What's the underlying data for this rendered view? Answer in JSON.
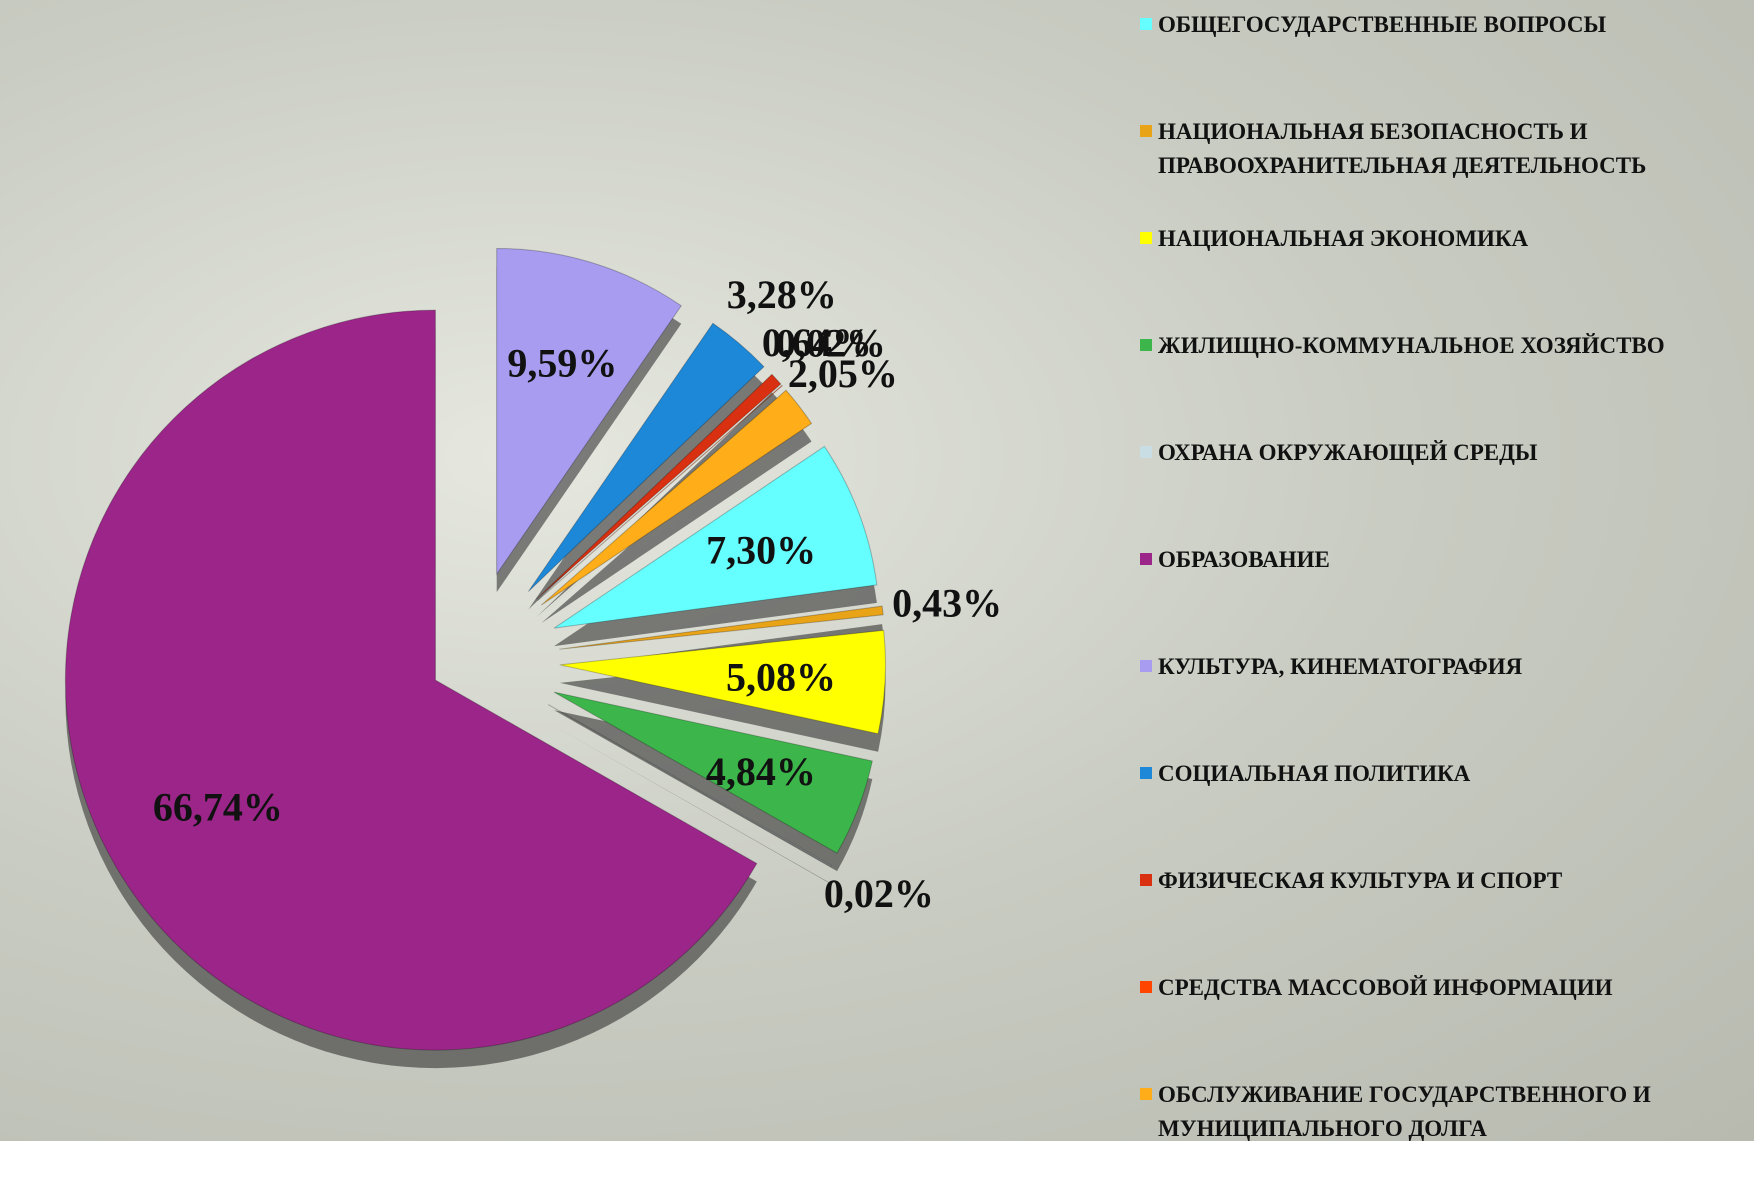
{
  "chart_data": {
    "type": "pie",
    "categories": [
      "ОБЩЕГОСУДАРСТВЕННЫЕ ВОПРОСЫ",
      "НАЦИОНАЛЬНАЯ БЕЗОПАСНОСТЬ И ПРАВООХРАНИТЕЛЬНАЯ ДЕЯТЕЛЬНОСТЬ",
      "НАЦИОНАЛЬНАЯ ЭКОНОМИКА",
      "ЖИЛИЩНО-КОММУНАЛЬНОЕ ХОЗЯЙСТВО",
      "ОХРАНА ОКРУЖАЮЩЕЙ СРЕДЫ",
      "ОБРАЗОВАНИЕ",
      "КУЛЬТУРА, КИНЕМАТОГРАФИЯ",
      "СОЦИАЛЬНАЯ ПОЛИТИКА",
      "ФИЗИЧЕСКАЯ КУЛЬТУРА И СПОРТ",
      "СРЕДСТВА МАССОВОЙ ИНФОРМАЦИИ",
      "ОБСЛУЖИВАНИЕ ГОСУДАРСТВЕННОГО И МУНИЦИПАЛЬНОГО ДОЛГА"
    ],
    "values": [
      7.3,
      0.43,
      5.08,
      4.84,
      0.02,
      66.74,
      9.59,
      3.28,
      0.64,
      0.02,
      2.05
    ],
    "value_labels": [
      "7,30%",
      "0,43%",
      "5,08%",
      "4,84%",
      "0,02%",
      "66,74%",
      "9,59%",
      "3,28%",
      "0,64%",
      "0,02%",
      "2,05%"
    ],
    "colors": [
      "#66ffff",
      "#e8a317",
      "#ffff00",
      "#3cb54a",
      "#c8dde4",
      "#9b2589",
      "#a89cf0",
      "#1e88d8",
      "#d83010",
      "#ff4500",
      "#ffae1a"
    ],
    "legend": "right"
  }
}
